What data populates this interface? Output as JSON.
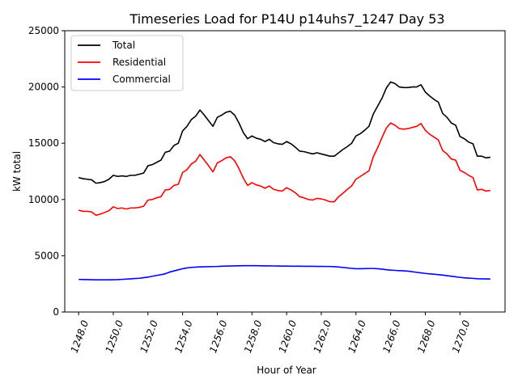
{
  "chart_data": {
    "type": "line",
    "title": "Timeseries Load for P14U p14uhs7_1247  Day 53",
    "xlabel": "Hour of Year",
    "ylabel": "kW total",
    "xlim": [
      1247.2,
      1272.6
    ],
    "ylim": [
      0,
      25000
    ],
    "xticks": [
      1248,
      1250,
      1252,
      1254,
      1256,
      1258,
      1260,
      1262,
      1264,
      1266,
      1268,
      1270
    ],
    "xtick_labels": [
      "1248.0",
      "1250.0",
      "1252.0",
      "1254.0",
      "1256.0",
      "1258.0",
      "1260.0",
      "1262.0",
      "1264.0",
      "1266.0",
      "1268.0",
      "1270.0"
    ],
    "yticks": [
      0,
      5000,
      10000,
      15000,
      20000,
      25000
    ],
    "ytick_labels": [
      "0",
      "5000",
      "10000",
      "15000",
      "20000",
      "25000"
    ],
    "legend_position": "top-left",
    "x": [
      1248.0,
      1248.25,
      1248.5,
      1248.75,
      1249.0,
      1249.25,
      1249.5,
      1249.75,
      1250.0,
      1250.25,
      1250.5,
      1250.75,
      1251.0,
      1251.25,
      1251.5,
      1251.75,
      1252.0,
      1252.25,
      1252.5,
      1252.75,
      1253.0,
      1253.25,
      1253.5,
      1253.75,
      1254.0,
      1254.25,
      1254.5,
      1254.75,
      1255.0,
      1255.25,
      1255.5,
      1255.75,
      1256.0,
      1256.25,
      1256.5,
      1256.75,
      1257.0,
      1257.25,
      1257.5,
      1257.75,
      1258.0,
      1258.25,
      1258.5,
      1258.75,
      1259.0,
      1259.25,
      1259.5,
      1259.75,
      1260.0,
      1260.25,
      1260.5,
      1260.75,
      1261.0,
      1261.25,
      1261.5,
      1261.75,
      1262.0,
      1262.25,
      1262.5,
      1262.75,
      1263.0,
      1263.25,
      1263.5,
      1263.75,
      1264.0,
      1264.25,
      1264.5,
      1264.75,
      1265.0,
      1265.25,
      1265.5,
      1265.75,
      1266.0,
      1266.25,
      1266.5,
      1266.75,
      1267.0,
      1267.25,
      1267.5,
      1267.75,
      1268.0,
      1268.25,
      1268.5,
      1268.75,
      1269.0,
      1269.25,
      1269.5,
      1269.75,
      1270.0,
      1270.25,
      1270.5,
      1270.75,
      1271.0,
      1271.25,
      1271.5,
      1271.75
    ],
    "series": [
      {
        "name": "Total",
        "color": "#000000",
        "values": [
          11950,
          11850,
          11800,
          11750,
          11450,
          11500,
          11600,
          11800,
          12150,
          12050,
          12100,
          12050,
          12150,
          12150,
          12250,
          12350,
          13000,
          13100,
          13300,
          13500,
          14200,
          14300,
          14800,
          15000,
          16100,
          16500,
          17100,
          17400,
          17950,
          17500,
          17000,
          16500,
          17300,
          17500,
          17750,
          17850,
          17500,
          16800,
          15950,
          15400,
          15650,
          15450,
          15350,
          15150,
          15350,
          15050,
          14950,
          14900,
          15150,
          14950,
          14650,
          14300,
          14250,
          14150,
          14050,
          14150,
          14050,
          13950,
          13850,
          13850,
          14150,
          14450,
          14700,
          15000,
          15650,
          15850,
          16150,
          16500,
          17600,
          18300,
          19000,
          19900,
          20450,
          20300,
          20000,
          19950,
          19950,
          20000,
          20000,
          20200,
          19550,
          19200,
          18900,
          18650,
          17650,
          17300,
          16800,
          16600,
          15600,
          15400,
          15100,
          14950,
          13850,
          13850,
          13700,
          13750
        ]
      },
      {
        "name": "Residential",
        "color": "#ff0000",
        "values": [
          9050,
          8950,
          8950,
          8900,
          8600,
          8700,
          8850,
          9000,
          9350,
          9200,
          9250,
          9150,
          9250,
          9250,
          9300,
          9400,
          9950,
          10000,
          10150,
          10250,
          10850,
          10900,
          11250,
          11350,
          12400,
          12650,
          13150,
          13400,
          14000,
          13500,
          13000,
          12450,
          13250,
          13450,
          13700,
          13800,
          13450,
          12750,
          11900,
          11250,
          11500,
          11300,
          11200,
          11000,
          11200,
          10900,
          10800,
          10750,
          11050,
          10850,
          10600,
          10250,
          10150,
          10000,
          9950,
          10100,
          10050,
          9950,
          9800,
          9800,
          10250,
          10550,
          10900,
          11200,
          11800,
          12050,
          12300,
          12550,
          13800,
          14600,
          15500,
          16350,
          16800,
          16600,
          16300,
          16250,
          16300,
          16400,
          16500,
          16750,
          16150,
          15800,
          15550,
          15300,
          14350,
          14050,
          13600,
          13500,
          12600,
          12400,
          12150,
          11950,
          10850,
          10900,
          10750,
          10800
        ]
      },
      {
        "name": "Commercial",
        "color": "#0000ff",
        "values": [
          2900,
          2890,
          2880,
          2870,
          2860,
          2860,
          2860,
          2860,
          2870,
          2880,
          2900,
          2920,
          2950,
          2980,
          3000,
          3050,
          3100,
          3180,
          3250,
          3320,
          3400,
          3550,
          3650,
          3750,
          3850,
          3920,
          3960,
          3990,
          4010,
          4020,
          4030,
          4040,
          4050,
          4070,
          4080,
          4090,
          4100,
          4110,
          4115,
          4120,
          4120,
          4115,
          4110,
          4100,
          4100,
          4095,
          4090,
          4085,
          4080,
          4075,
          4070,
          4070,
          4065,
          4060,
          4060,
          4055,
          4055,
          4050,
          4050,
          4030,
          4000,
          3960,
          3920,
          3880,
          3850,
          3850,
          3860,
          3870,
          3870,
          3850,
          3810,
          3760,
          3720,
          3700,
          3680,
          3660,
          3630,
          3580,
          3530,
          3480,
          3430,
          3390,
          3360,
          3320,
          3280,
          3230,
          3180,
          3130,
          3080,
          3040,
          3010,
          2990,
          2960,
          2950,
          2940,
          2930
        ]
      }
    ]
  }
}
